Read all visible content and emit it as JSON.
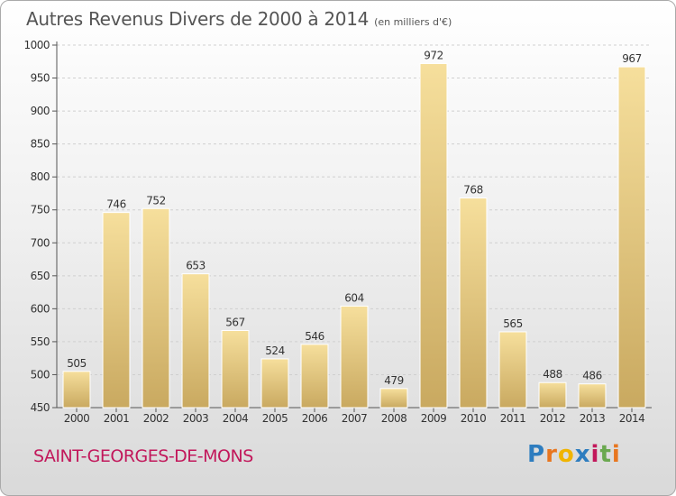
{
  "header": {
    "title": "Autres Revenus Divers de 2000 à 2014",
    "unit": "(en milliers d'€)"
  },
  "footer": {
    "place": "SAINT-GEORGES-DE-MONS",
    "brand": "Proxiti",
    "brand_letters": [
      {
        "ch": "P",
        "color": "#2e7dbf"
      },
      {
        "ch": "r",
        "color": "#e8761f"
      },
      {
        "ch": "o",
        "color": "#f0b400"
      },
      {
        "ch": "x",
        "color": "#2e7dbf"
      },
      {
        "ch": "i",
        "color": "#c2185b"
      },
      {
        "ch": "t",
        "color": "#6aa84f"
      },
      {
        "ch": "i",
        "color": "#e8761f"
      }
    ]
  },
  "chart_data": {
    "type": "bar",
    "title": "Autres Revenus Divers de 2000 à 2014",
    "subtitle": "(en milliers d'€)",
    "categories": [
      "2000",
      "2001",
      "2002",
      "2003",
      "2004",
      "2005",
      "2006",
      "2007",
      "2008",
      "2009",
      "2010",
      "2011",
      "2012",
      "2013",
      "2014"
    ],
    "values": [
      505,
      746,
      752,
      653,
      567,
      524,
      546,
      604,
      479,
      972,
      768,
      565,
      488,
      486,
      967
    ],
    "ylim": [
      450,
      1000
    ],
    "yticks": [
      450,
      500,
      550,
      600,
      650,
      700,
      750,
      800,
      850,
      900,
      950,
      1000
    ],
    "grid": true,
    "legend": "none",
    "bar_color": "#e3c57f"
  }
}
